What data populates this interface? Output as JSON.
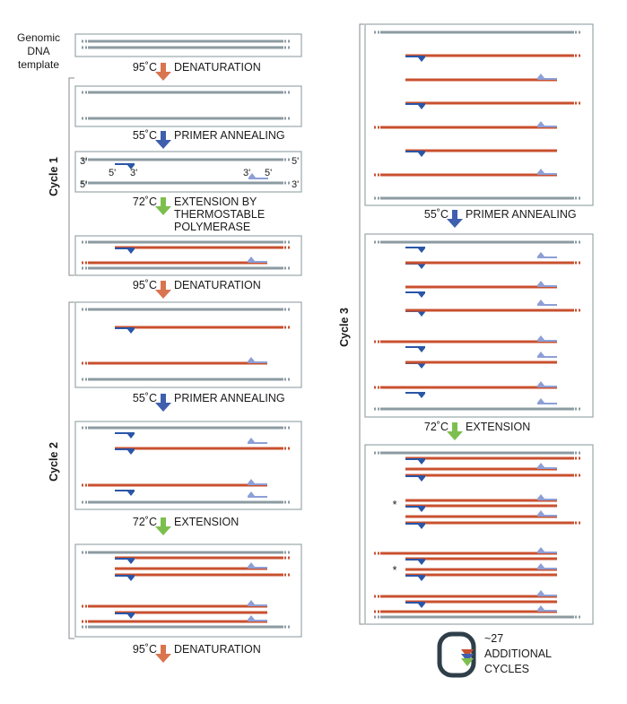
{
  "template_label": [
    "Genomic",
    "DNA",
    "template"
  ],
  "colors": {
    "template": "#8c9ba1",
    "product": "#c9502f",
    "fwd_primer": "#2a56a8",
    "rev_primer": "#8d9fd6",
    "arrow_denature": "#d9744f",
    "arrow_anneal": "#3f5fae",
    "arrow_extend": "#7dbf4f",
    "cycle1": "#d6338a",
    "cycle2": "#7dbf4f",
    "cycle3": "#3f5fae",
    "loop": "#2f3f4a"
  },
  "cycles": {
    "cycle1": "Cycle 1",
    "cycle2": "Cycle 2",
    "cycle3": "Cycle 3"
  },
  "steps": {
    "denaturation": "DENATURATION",
    "primer_annealing": "PRIMER ANNEALING",
    "extension": "EXTENSION",
    "extension_by": [
      "EXTENSION BY",
      "THERMOSTABLE",
      "POLYMERASE"
    ]
  },
  "temps": {
    "denature": "95˚C",
    "anneal": "55˚C",
    "extend": "72˚C"
  },
  "ends": {
    "three_prime": "3'",
    "five_prime": "5'"
  },
  "asterisk": "*",
  "loop_text": [
    "~27",
    "ADDITIONAL",
    "CYCLES"
  ]
}
